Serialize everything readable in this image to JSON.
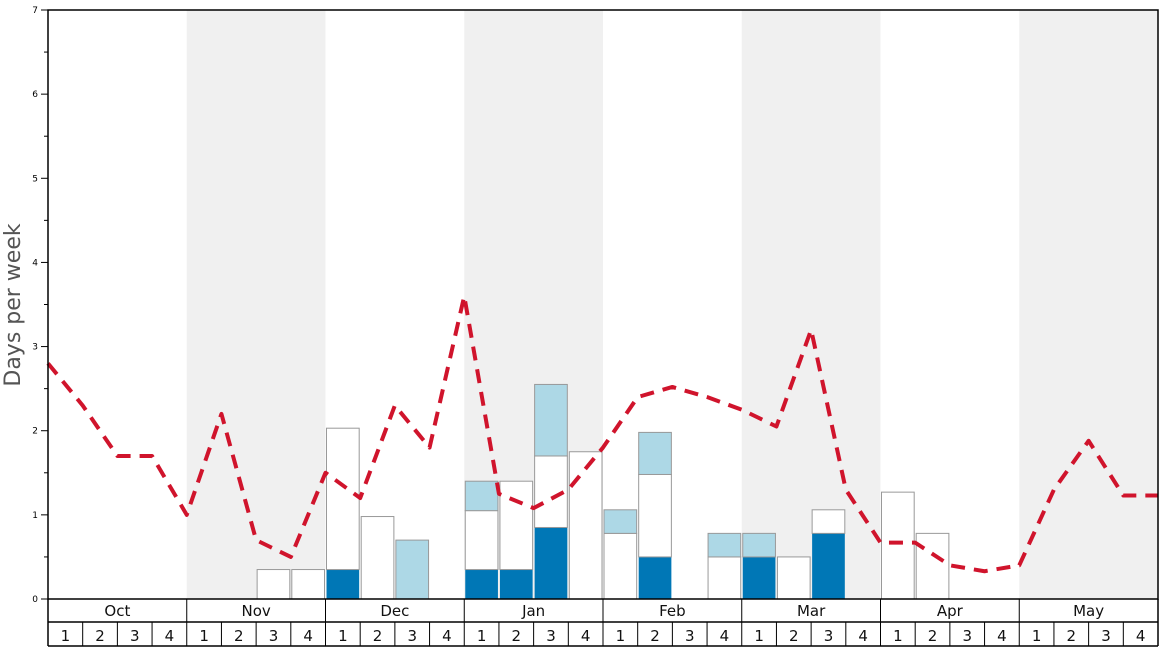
{
  "chart_data": {
    "type": "bar",
    "ylabel": "Days per week",
    "xlabel": "",
    "ylim": [
      0,
      7
    ],
    "y_ticks": [
      "0",
      "1",
      "2",
      "3",
      "4",
      "5",
      "6",
      "7"
    ],
    "months": [
      "Oct",
      "Nov",
      "Dec",
      "Jan",
      "Feb",
      "Mar",
      "Apr",
      "May"
    ],
    "week_labels": [
      "1",
      "2",
      "3",
      "4"
    ],
    "shaded_months": [
      "Nov",
      "Jan",
      "Mar",
      "May"
    ],
    "colors": {
      "dark_segment": "#0077b6",
      "light_segment": "#add8e6",
      "white_segment": "#ffffff",
      "line": "#d0142c",
      "band": "#f0f0f0"
    },
    "stack_order": [
      "dark",
      "white",
      "light"
    ],
    "series": [
      {
        "key": "dark",
        "values": [
          0,
          0,
          0,
          0,
          0,
          0,
          0,
          0,
          0.35,
          0,
          0,
          0,
          0.35,
          0.35,
          0.85,
          0,
          0,
          0.5,
          0,
          0,
          0.5,
          0,
          0.78,
          0,
          0,
          0,
          0,
          0,
          0,
          0,
          0,
          0
        ]
      },
      {
        "key": "white",
        "values": [
          0,
          0,
          0,
          0,
          0,
          0,
          0.35,
          0.35,
          1.68,
          0.98,
          0,
          0,
          0.7,
          1.05,
          0.85,
          1.75,
          0.78,
          0.98,
          0,
          0.5,
          0,
          0.5,
          0.28,
          0,
          1.27,
          0.78,
          0,
          0,
          0,
          0,
          0,
          0
        ]
      },
      {
        "key": "light",
        "values": [
          0,
          0,
          0,
          0,
          0,
          0,
          0,
          0,
          0,
          0,
          0.7,
          0,
          0.35,
          0,
          0.85,
          0,
          0.28,
          0.5,
          0,
          0.28,
          0.28,
          0,
          0,
          0,
          0,
          0,
          0,
          0,
          0,
          0,
          0,
          0
        ]
      },
      {
        "key": "line",
        "type": "line",
        "style": "dashed",
        "values": [
          2.8,
          2.3,
          1.7,
          1.7,
          1.0,
          2.2,
          0.7,
          0.5,
          1.5,
          1.2,
          2.3,
          1.8,
          3.6,
          1.25,
          1.08,
          1.3,
          1.8,
          2.4,
          2.52,
          2.4,
          2.25,
          2.05,
          3.2,
          1.3,
          0.67,
          0.67,
          0.4,
          0.33,
          0.4,
          1.3,
          1.88,
          1.23,
          1.23
        ]
      }
    ]
  }
}
